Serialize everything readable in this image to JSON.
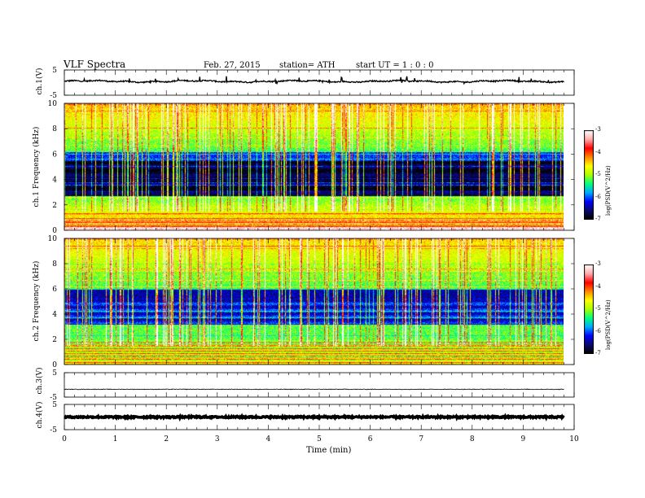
{
  "header": {
    "title": "VLF Spectra",
    "date": "Feb. 27, 2015",
    "station": "station= ATH",
    "start": "start UT = 1 : 0 : 0"
  },
  "colors": {
    "waveform": "#000000",
    "background": "#ffffff",
    "colormap": [
      "#000000",
      "#0a0a6a",
      "#0000ff",
      "#00aaff",
      "#00ff80",
      "#aaff00",
      "#ffff00",
      "#ff8800",
      "#ff0000",
      "#ffaaaa",
      "#ffffff"
    ]
  },
  "chart_data": [
    {
      "panel": "ch1-waveform",
      "type": "line",
      "ylabel": "ch.1(V)",
      "x_range": [
        0,
        10
      ],
      "ylim": [
        -5,
        5
      ],
      "yticks": [
        "5",
        "-5"
      ],
      "data_end_min": 9.8,
      "trace_level": 0.5
    },
    {
      "panel": "ch1-spectrogram",
      "type": "heatmap",
      "ylabel": "ch.1 Frequency (kHz)",
      "ylim": [
        0,
        10
      ],
      "yticks": [
        "10",
        "8",
        "6",
        "4",
        "2",
        "0"
      ],
      "colorbar": {
        "label": "log(PSD(V^2/Hz)",
        "range": [
          -7,
          -3
        ],
        "ticks": [
          "-3",
          "-4",
          "-5",
          "-6",
          "-7"
        ]
      }
    },
    {
      "panel": "ch2-spectrogram",
      "type": "heatmap",
      "ylabel": "ch.2 Frequency (kHz)",
      "ylim": [
        0,
        10
      ],
      "yticks": [
        "10",
        "8",
        "6",
        "4",
        "2",
        "0"
      ],
      "colorbar": {
        "label": "log(PSD(V^2/Hz)",
        "range": [
          -7,
          -3
        ],
        "ticks": [
          "-3",
          "-4",
          "-5",
          "-6",
          "-7"
        ]
      }
    },
    {
      "panel": "ch3-waveform",
      "type": "line",
      "ylabel": "ch.3(V)",
      "ylim": [
        -5,
        5
      ],
      "yticks": [
        "5",
        "-5"
      ],
      "trace_level": -1.8
    },
    {
      "panel": "ch4-waveform",
      "type": "line",
      "ylabel": "ch.4(V)",
      "ylim": [
        -5,
        5
      ],
      "yticks": [
        "5",
        "-5"
      ],
      "trace_level": 0
    },
    {
      "panel": "time-axis",
      "xlabel": "Time (min)",
      "xlim": [
        0,
        10
      ],
      "xticks": [
        "0",
        "1",
        "2",
        "3",
        "4",
        "5",
        "6",
        "7",
        "8",
        "9",
        "10"
      ]
    }
  ]
}
